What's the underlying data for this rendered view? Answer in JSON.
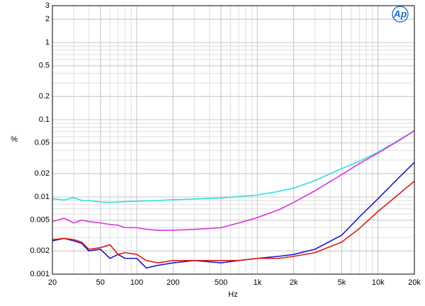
{
  "chart_data": {
    "type": "line",
    "logo": "Ap",
    "ylabel": "%",
    "xlabel": "Hz",
    "xscale": "log",
    "yscale": "log",
    "grid": true,
    "minor_grid": true,
    "xlim": [
      20,
      20000
    ],
    "ylim": [
      0.001,
      3
    ],
    "xticks": [
      20,
      50,
      100,
      200,
      500,
      {
        "value": 1000,
        "label": "1k"
      },
      {
        "value": 2000,
        "label": "2k"
      },
      {
        "value": 5000,
        "label": "5k"
      },
      {
        "value": 10000,
        "label": "10k"
      },
      {
        "value": 20000,
        "label": "20k"
      }
    ],
    "yticks": [
      3,
      2,
      1,
      0.5,
      0.2,
      0.1,
      0.05,
      0.02,
      0.01,
      0.005,
      0.002,
      0.001
    ],
    "x": [
      20,
      25,
      30,
      35,
      40,
      50,
      60,
      70,
      80,
      100,
      120,
      150,
      200,
      300,
      500,
      700,
      1000,
      1500,
      2000,
      3000,
      5000,
      7000,
      10000,
      15000,
      20000
    ],
    "series": [
      {
        "color": "#33dddd",
        "values": [
          0.0095,
          0.0091,
          0.0098,
          0.009,
          0.009,
          0.0086,
          0.0085,
          0.0086,
          0.0087,
          0.0088,
          0.0089,
          0.009,
          0.0092,
          0.0094,
          0.0097,
          0.0101,
          0.0106,
          0.0118,
          0.013,
          0.0163,
          0.0233,
          0.029,
          0.038,
          0.055,
          0.072
        ]
      },
      {
        "color": "#dd33dd",
        "values": [
          0.0048,
          0.0053,
          0.0046,
          0.005,
          0.0048,
          0.0046,
          0.0044,
          0.0043,
          0.004,
          0.004,
          0.0038,
          0.0037,
          0.0037,
          0.0038,
          0.004,
          0.0046,
          0.0054,
          0.0068,
          0.0085,
          0.012,
          0.0195,
          0.027,
          0.037,
          0.054,
          0.072
        ]
      },
      {
        "color": "#1a1ac8",
        "values": [
          0.0027,
          0.0029,
          0.0027,
          0.0025,
          0.002,
          0.0021,
          0.0016,
          0.0018,
          0.0016,
          0.0016,
          0.0012,
          0.0013,
          0.0014,
          0.0015,
          0.0014,
          0.0015,
          0.0016,
          0.0017,
          0.0018,
          0.0021,
          0.0032,
          0.0055,
          0.0095,
          0.018,
          0.028
        ]
      },
      {
        "color": "#e01818",
        "values": [
          0.0028,
          0.0029,
          0.0028,
          0.0026,
          0.0021,
          0.0022,
          0.0024,
          0.0018,
          0.0019,
          0.0018,
          0.0015,
          0.0014,
          0.0015,
          0.0015,
          0.0015,
          0.0015,
          0.0016,
          0.0016,
          0.0017,
          0.0019,
          0.0026,
          0.0039,
          0.0065,
          0.011,
          0.016
        ]
      }
    ]
  }
}
